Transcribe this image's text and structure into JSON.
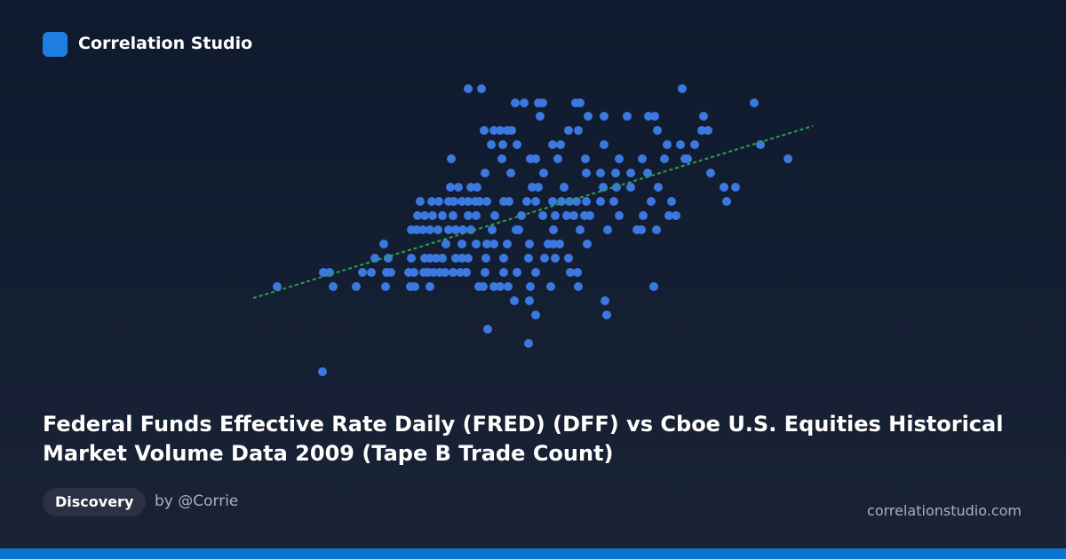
{
  "brand": "Correlation Studio",
  "title": "Federal Funds Effective Rate Daily (FRED) (DFF) vs Cboe U.S. Equities Historical Market Volume Data 2009 (Tape B Trade Count)",
  "tag": "Discovery",
  "author": "by @Corrie",
  "site": "correlationstudio.com",
  "chart_data": {
    "type": "scatter",
    "color": "#3b78e0",
    "xlim": [
      0,
      640
    ],
    "ylim": [
      0,
      340
    ],
    "x": [
      247,
      262,
      488,
      300,
      310,
      326,
      331,
      368,
      373,
      569,
      328,
      382,
      400,
      426,
      450,
      457,
      512,
      265,
      276,
      283,
      291,
      296,
      360,
      371,
      460,
      510,
      517,
      273,
      286,
      302,
      342,
      351,
      400,
      471,
      486,
      502,
      576,
      228,
      285,
      317,
      323,
      348,
      379,
      417,
      443,
      468,
      491,
      494,
      607,
      266,
      295,
      332,
      380,
      396,
      413,
      430,
      449,
      520,
      227,
      236,
      250,
      257,
      319,
      326,
      355,
      399,
      414,
      430,
      461,
      535,
      548,
      193,
      206,
      214,
      225,
      231,
      240,
      247,
      255,
      260,
      268,
      287,
      293,
      313,
      323,
      342,
      352,
      361,
      369,
      380,
      396,
      411,
      453,
      476,
      538,
      190,
      198,
      207,
      218,
      230,
      247,
      256,
      277,
      307,
      331,
      345,
      358,
      366,
      378,
      384,
      417,
      444,
      473,
      481,
      183,
      189,
      196,
      204,
      213,
      225,
      233,
      241,
      250,
      274,
      301,
      304,
      343,
      373,
      404,
      437,
      442,
      459,
      152,
      222,
      240,
      256,
      268,
      276,
      291,
      316,
      337,
      343,
      350,
      381,
      142,
      157,
      183,
      198,
      204,
      211,
      218,
      233,
      240,
      247,
      267,
      287,
      315,
      333,
      345,
      360,
      84,
      91,
      128,
      138,
      155,
      160,
      180,
      186,
      197,
      202,
      208,
      215,
      221,
      230,
      238,
      245,
      266,
      287,
      302,
      323,
      362,
      370,
      32,
      95,
      121,
      154,
      182,
      187,
      204,
      259,
      264,
      276,
      283,
      292,
      317,
      340,
      371,
      456,
      299,
      316,
      401,
      323,
      403,
      269,
      315,
      83
    ],
    "values": [
      330,
      330,
      330,
      314,
      314,
      314,
      314,
      314,
      314,
      314,
      299,
      299,
      299,
      299,
      299,
      299,
      299,
      283,
      283,
      283,
      283,
      283,
      283,
      283,
      283,
      283,
      283,
      267,
      267,
      267,
      267,
      267,
      267,
      267,
      267,
      267,
      267,
      251,
      251,
      251,
      251,
      251,
      251,
      251,
      251,
      251,
      251,
      251,
      251,
      235,
      235,
      235,
      235,
      235,
      235,
      235,
      235,
      235,
      219,
      219,
      219,
      219,
      219,
      219,
      219,
      219,
      219,
      219,
      219,
      219,
      219,
      203,
      203,
      203,
      203,
      203,
      203,
      203,
      203,
      203,
      203,
      203,
      203,
      203,
      203,
      203,
      203,
      203,
      203,
      203,
      203,
      203,
      203,
      203,
      203,
      187,
      187,
      187,
      187,
      187,
      187,
      187,
      187,
      187,
      187,
      187,
      187,
      187,
      187,
      187,
      187,
      187,
      187,
      187,
      171,
      171,
      171,
      171,
      171,
      171,
      171,
      171,
      171,
      171,
      171,
      171,
      171,
      171,
      171,
      171,
      171,
      171,
      155,
      155,
      155,
      155,
      155,
      155,
      155,
      155,
      155,
      155,
      155,
      155,
      139,
      139,
      139,
      139,
      139,
      139,
      139,
      139,
      139,
      139,
      139,
      139,
      139,
      139,
      139,
      139,
      123,
      123,
      123,
      123,
      123,
      123,
      123,
      123,
      123,
      123,
      123,
      123,
      123,
      123,
      123,
      123,
      123,
      123,
      123,
      123,
      123,
      123,
      107,
      107,
      107,
      107,
      107,
      107,
      107,
      107,
      107,
      107,
      107,
      107,
      107,
      107,
      107,
      107,
      91,
      91,
      91,
      75,
      75,
      59,
      43,
      11
    ],
    "trend_line": {
      "color": "#2ea052",
      "x": [
        5,
        635
      ],
      "values": [
        94,
        288
      ]
    }
  }
}
